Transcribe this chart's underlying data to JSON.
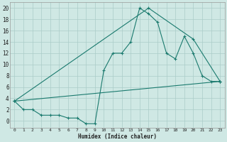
{
  "xlabel": "Humidex (Indice chaleur)",
  "background_color": "#cfe8e4",
  "grid_color": "#aaccc8",
  "line_color": "#1a7a6e",
  "xlim": [
    -0.5,
    23.5
  ],
  "ylim": [
    -1.2,
    21
  ],
  "x_ticks": [
    0,
    1,
    2,
    3,
    4,
    5,
    6,
    7,
    8,
    9,
    10,
    11,
    12,
    13,
    14,
    15,
    16,
    17,
    18,
    19,
    20,
    21,
    22,
    23
  ],
  "y_ticks": [
    0,
    2,
    4,
    6,
    8,
    10,
    12,
    14,
    16,
    18,
    20
  ],
  "series1_x": [
    0,
    1,
    2,
    3,
    4,
    5,
    6,
    7,
    8,
    9,
    10,
    11,
    12,
    13,
    14,
    15,
    16,
    17,
    18,
    19,
    20,
    21,
    22,
    23
  ],
  "series1_y": [
    3.5,
    2,
    2,
    1,
    1,
    1,
    0.5,
    0.5,
    -0.5,
    -0.5,
    9,
    12,
    12,
    14,
    20,
    19,
    17.5,
    12,
    11,
    15,
    12,
    8,
    7,
    7
  ],
  "series2_x": [
    0,
    15,
    20,
    23
  ],
  "series2_y": [
    3.5,
    20,
    14.5,
    7
  ],
  "series3_x": [
    0,
    23
  ],
  "series3_y": [
    3.5,
    7
  ],
  "figsize": [
    3.2,
    2.0
  ],
  "dpi": 100
}
